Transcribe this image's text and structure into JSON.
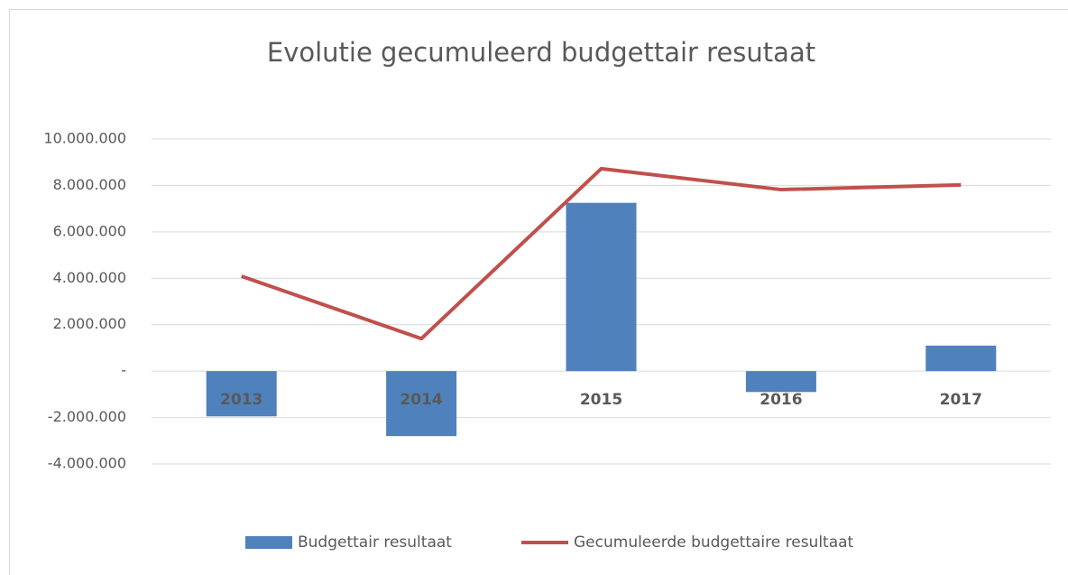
{
  "chart_data": {
    "type": "bar",
    "title": "Evolutie gecumuleerd budgettair resutaat",
    "categories": [
      "2013",
      "2014",
      "2015",
      "2016",
      "2017"
    ],
    "series": [
      {
        "name": "Budgettair resultaat",
        "type": "bar",
        "color": "#4f81bd",
        "values": [
          -1950000,
          -2800000,
          7250000,
          -900000,
          1100000
        ]
      },
      {
        "name": "Gecumuleerde budgettaire resultaat",
        "type": "line",
        "color": "#c0504d",
        "values": [
          4090000,
          1400000,
          8720000,
          7820000,
          8020000
        ]
      }
    ],
    "ylim": [
      -4000000,
      10000000
    ],
    "yticks": [
      {
        "value": -4000000,
        "label": "-4.000.000"
      },
      {
        "value": -2000000,
        "label": "-2.000.000"
      },
      {
        "value": 0,
        "label": "-"
      },
      {
        "value": 2000000,
        "label": "2.000.000"
      },
      {
        "value": 4000000,
        "label": "4.000.000"
      },
      {
        "value": 6000000,
        "label": "6.000.000"
      },
      {
        "value": 8000000,
        "label": "8.000.000"
      },
      {
        "value": 10000000,
        "label": "10.000.000"
      }
    ],
    "grid": true,
    "legend": "bottom"
  }
}
